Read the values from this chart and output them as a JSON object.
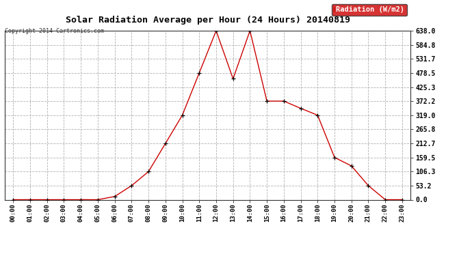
{
  "title": "Solar Radiation Average per Hour (24 Hours) 20140819",
  "copyright": "Copyright 2014 Cartronics.com",
  "legend_label": "Radiation (W/m2)",
  "hours": [
    "00:00",
    "01:00",
    "02:00",
    "03:00",
    "04:00",
    "05:00",
    "06:00",
    "07:00",
    "08:00",
    "09:00",
    "10:00",
    "11:00",
    "12:00",
    "13:00",
    "14:00",
    "15:00",
    "16:00",
    "17:00",
    "18:00",
    "19:00",
    "20:00",
    "21:00",
    "22:00",
    "23:00"
  ],
  "values": [
    0.0,
    0.0,
    0.0,
    0.0,
    0.0,
    0.0,
    12.0,
    53.0,
    106.0,
    212.0,
    319.0,
    478.5,
    638.0,
    456.5,
    638.0,
    372.2,
    372.2,
    345.0,
    319.0,
    159.5,
    127.5,
    53.0,
    0.0,
    0.0
  ],
  "line_color": "#cc0000",
  "marker_color": "#000000",
  "background_color": "#ffffff",
  "grid_color": "#b0b0b0",
  "ytick_values": [
    0.0,
    53.2,
    106.3,
    159.5,
    212.7,
    265.8,
    319.0,
    372.2,
    425.3,
    478.5,
    531.7,
    584.8,
    638.0
  ],
  "ytick_labels": [
    "0.0",
    "53.2",
    "106.3",
    "159.5",
    "212.7",
    "265.8",
    "319.0",
    "372.2",
    "425.3",
    "478.5",
    "531.7",
    "584.8",
    "638.0"
  ],
  "ymax": 638.0,
  "ymin": 0.0,
  "legend_bg": "#cc0000",
  "legend_text_color": "#ffffff"
}
